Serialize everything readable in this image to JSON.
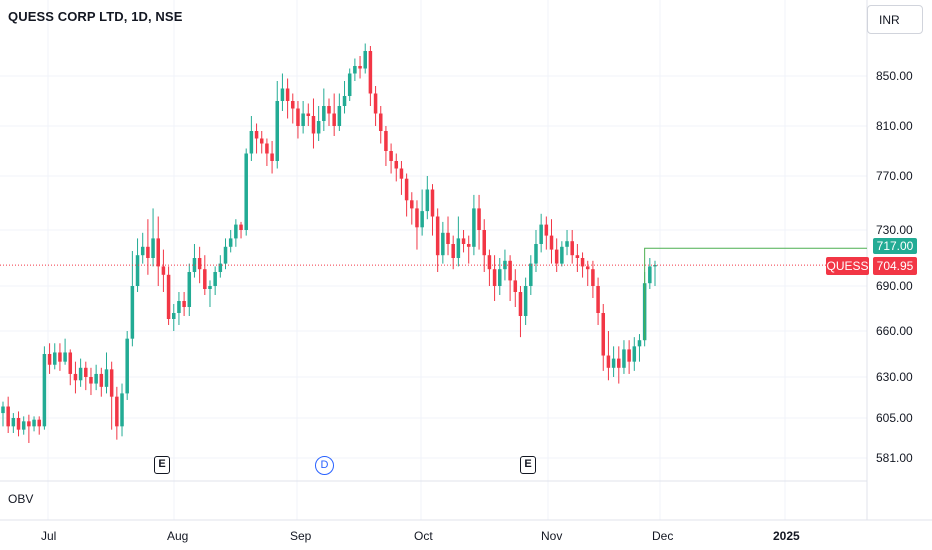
{
  "header": {
    "title": "QUESS CORP LTD, 1D, NSE"
  },
  "toolbar": {
    "currency": "INR"
  },
  "indicator": {
    "label": "OBV"
  },
  "price_axis": {
    "ticks": [
      "850.00",
      "810.00",
      "770.00",
      "730.00",
      "690.00",
      "660.00",
      "630.00",
      "605.00",
      "581.00"
    ]
  },
  "time_axis": {
    "ticks": [
      "Jul",
      "Aug",
      "Sep",
      "Oct",
      "Nov",
      "Dec",
      "2025"
    ]
  },
  "events": [
    {
      "label": "E"
    },
    {
      "label": "D"
    },
    {
      "label": "E"
    }
  ],
  "price_tags": {
    "high_line_value": "717.00",
    "symbol": "QUESS",
    "last_price": "704.95"
  },
  "colors": {
    "up": "#22ab94",
    "down": "#f23645",
    "grid": "#f0f3fa",
    "line": "#4caf50"
  },
  "chart_data": {
    "type": "candlestick",
    "symbol": "QUESS",
    "interval": "1D",
    "last_price": 704.95,
    "high_marker": 717.0,
    "y_ticks": [
      850,
      810,
      770,
      730,
      690,
      660,
      630,
      605,
      581
    ],
    "x_ticks": [
      "Jul",
      "Aug",
      "Sep",
      "Oct",
      "Nov",
      "Dec",
      "2025"
    ],
    "candles": [
      [
        608,
        612,
        600,
        615
      ],
      [
        612,
        600,
        596,
        618
      ],
      [
        600,
        605,
        596,
        608
      ],
      [
        605,
        598,
        594,
        609
      ],
      [
        598,
        603,
        595,
        606
      ],
      [
        603,
        600,
        590,
        607
      ],
      [
        600,
        604,
        597,
        606
      ],
      [
        604,
        600,
        595,
        606
      ],
      [
        600,
        645,
        598,
        650
      ],
      [
        645,
        638,
        632,
        652
      ],
      [
        638,
        646,
        635,
        652
      ],
      [
        646,
        640,
        634,
        652
      ],
      [
        640,
        646,
        638,
        655
      ],
      [
        646,
        632,
        625,
        648
      ],
      [
        632,
        628,
        620,
        640
      ],
      [
        628,
        636,
        624,
        642
      ],
      [
        636,
        630,
        622,
        640
      ],
      [
        630,
        626,
        619,
        636
      ],
      [
        626,
        632,
        622,
        638
      ],
      [
        632,
        624,
        618,
        636
      ],
      [
        624,
        635,
        620,
        646
      ],
      [
        635,
        618,
        598,
        640
      ],
      [
        618,
        600,
        592,
        624
      ],
      [
        600,
        620,
        594,
        626
      ],
      [
        620,
        655,
        616,
        660
      ],
      [
        655,
        690,
        650,
        715
      ],
      [
        690,
        712,
        686,
        724
      ],
      [
        712,
        718,
        706,
        728
      ],
      [
        718,
        710,
        698,
        738
      ],
      [
        710,
        724,
        704,
        746
      ],
      [
        724,
        704,
        690,
        740
      ],
      [
        704,
        698,
        686,
        716
      ],
      [
        698,
        668,
        664,
        704
      ],
      [
        668,
        672,
        660,
        678
      ],
      [
        672,
        680,
        664,
        686
      ],
      [
        680,
        676,
        670,
        686
      ],
      [
        676,
        700,
        670,
        706
      ],
      [
        700,
        710,
        696,
        720
      ],
      [
        710,
        702,
        692,
        718
      ],
      [
        702,
        688,
        684,
        712
      ],
      [
        688,
        690,
        676,
        694
      ],
      [
        690,
        700,
        684,
        704
      ],
      [
        700,
        706,
        696,
        712
      ],
      [
        706,
        718,
        702,
        724
      ],
      [
        718,
        724,
        714,
        730
      ],
      [
        724,
        734,
        718,
        738
      ],
      [
        734,
        730,
        724,
        736
      ],
      [
        730,
        788,
        726,
        792
      ],
      [
        788,
        806,
        782,
        818
      ],
      [
        806,
        800,
        788,
        812
      ],
      [
        800,
        796,
        788,
        806
      ],
      [
        796,
        788,
        778,
        800
      ],
      [
        788,
        782,
        772,
        798
      ],
      [
        782,
        830,
        776,
        846
      ],
      [
        830,
        840,
        822,
        852
      ],
      [
        840,
        830,
        816,
        848
      ],
      [
        830,
        824,
        812,
        836
      ],
      [
        824,
        810,
        800,
        830
      ],
      [
        810,
        820,
        804,
        830
      ],
      [
        820,
        818,
        810,
        828
      ],
      [
        818,
        804,
        792,
        832
      ],
      [
        804,
        814,
        798,
        826
      ],
      [
        814,
        826,
        806,
        840
      ],
      [
        826,
        820,
        810,
        832
      ],
      [
        820,
        810,
        802,
        836
      ],
      [
        810,
        826,
        806,
        836
      ],
      [
        826,
        834,
        820,
        846
      ],
      [
        834,
        852,
        830,
        856
      ],
      [
        852,
        858,
        846,
        864
      ],
      [
        858,
        856,
        848,
        866
      ],
      [
        856,
        870,
        852,
        876
      ],
      [
        870,
        836,
        826,
        874
      ],
      [
        836,
        820,
        810,
        842
      ],
      [
        820,
        806,
        796,
        826
      ],
      [
        806,
        790,
        778,
        810
      ],
      [
        790,
        782,
        772,
        796
      ],
      [
        782,
        776,
        766,
        788
      ],
      [
        776,
        768,
        756,
        782
      ],
      [
        768,
        752,
        740,
        772
      ],
      [
        752,
        746,
        734,
        758
      ],
      [
        746,
        732,
        716,
        752
      ],
      [
        732,
        744,
        726,
        760
      ],
      [
        744,
        760,
        738,
        770
      ],
      [
        760,
        740,
        726,
        764
      ],
      [
        740,
        712,
        700,
        746
      ],
      [
        712,
        728,
        706,
        736
      ],
      [
        728,
        720,
        712,
        740
      ],
      [
        720,
        710,
        702,
        726
      ],
      [
        710,
        724,
        704,
        740
      ],
      [
        724,
        720,
        714,
        730
      ],
      [
        720,
        718,
        706,
        726
      ],
      [
        718,
        746,
        712,
        756
      ],
      [
        746,
        730,
        716,
        756
      ],
      [
        730,
        712,
        700,
        738
      ],
      [
        712,
        702,
        690,
        716
      ],
      [
        702,
        690,
        680,
        712
      ],
      [
        690,
        702,
        684,
        710
      ],
      [
        702,
        708,
        694,
        716
      ],
      [
        708,
        694,
        680,
        712
      ],
      [
        694,
        686,
        676,
        702
      ],
      [
        686,
        670,
        656,
        690
      ],
      [
        670,
        690,
        664,
        696
      ],
      [
        690,
        706,
        684,
        712
      ],
      [
        706,
        720,
        700,
        730
      ],
      [
        720,
        734,
        714,
        742
      ],
      [
        734,
        726,
        716,
        740
      ],
      [
        726,
        716,
        706,
        738
      ],
      [
        716,
        706,
        700,
        724
      ],
      [
        706,
        718,
        704,
        722
      ],
      [
        718,
        722,
        712,
        730
      ],
      [
        722,
        712,
        706,
        730
      ],
      [
        712,
        710,
        700,
        720
      ],
      [
        710,
        704,
        696,
        714
      ],
      [
        704,
        702,
        690,
        708
      ],
      [
        702,
        690,
        682,
        708
      ],
      [
        690,
        672,
        664,
        696
      ],
      [
        672,
        644,
        634,
        678
      ],
      [
        644,
        636,
        628,
        660
      ],
      [
        636,
        642,
        630,
        650
      ],
      [
        642,
        636,
        626,
        650
      ],
      [
        636,
        648,
        632,
        654
      ],
      [
        648,
        640,
        632,
        654
      ],
      [
        640,
        650,
        634,
        656
      ],
      [
        650,
        654,
        640,
        658
      ],
      [
        654,
        692,
        650,
        700
      ],
      [
        692,
        704,
        688,
        710
      ],
      [
        704,
        705,
        690,
        708
      ]
    ]
  }
}
